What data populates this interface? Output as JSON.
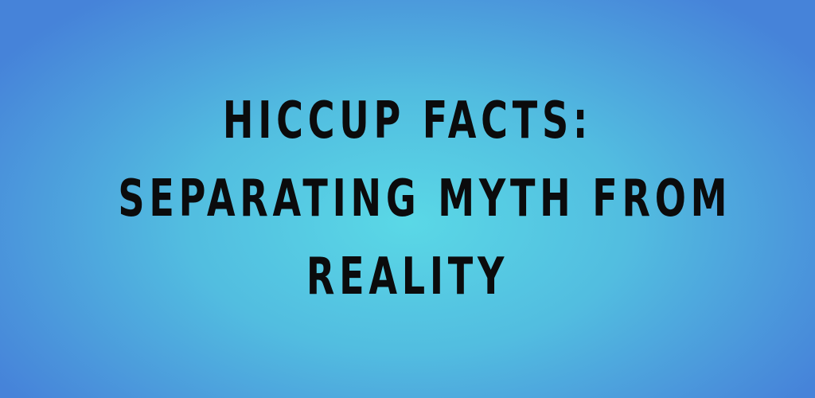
{
  "banner": {
    "title_lines": [
      "HICCUP FACTS:",
      "SEPARATING MYTH FROM",
      "REALITY"
    ],
    "colors": {
      "background_center": "#5ad8e6",
      "background_edge": "#4683d9",
      "text": "#0b0b0c"
    }
  }
}
